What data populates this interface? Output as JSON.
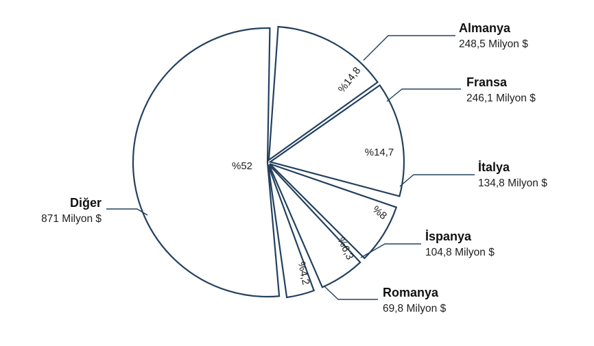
{
  "chart_data": {
    "type": "pie",
    "unit": "Milyon $",
    "slices": [
      {
        "name": "Almanya",
        "value": 248.5,
        "value_label": "248,5 Milyon $",
        "percent": 14.8,
        "percent_label": "%14,8"
      },
      {
        "name": "Fransa",
        "value": 246.1,
        "value_label": "246,1 Milyon $",
        "percent": 14.7,
        "percent_label": "%14,7"
      },
      {
        "name": "İtalya",
        "value": 134.8,
        "value_label": "134,8 Milyon $",
        "percent": 8,
        "percent_label": "%8"
      },
      {
        "name": "İspanya",
        "value": 104.8,
        "value_label": "104,8 Milyon $",
        "percent": 6.3,
        "percent_label": "%6,3"
      },
      {
        "name": "Romanya",
        "value": 69.8,
        "value_label": "69,8 Milyon $",
        "percent": 4.2,
        "percent_label": "%4,2"
      },
      {
        "name": "Diğer",
        "value": 871,
        "value_label": "871 Milyon $",
        "percent": 52,
        "percent_label": "%52"
      }
    ],
    "colors": {
      "stroke": "#22405e",
      "fill": "#ffffff",
      "text": "#1d1d1b"
    }
  }
}
